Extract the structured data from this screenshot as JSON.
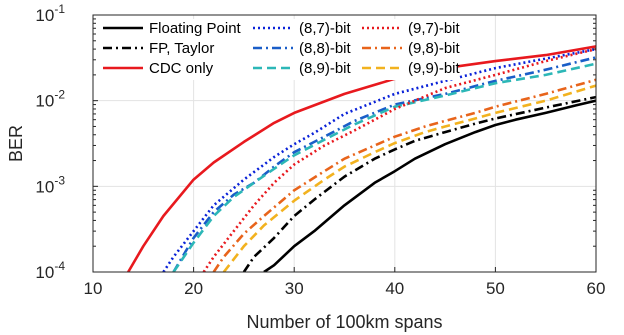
{
  "chart_data": {
    "type": "line",
    "xlabel": "Number of 100km spans",
    "ylabel": "BER",
    "xlim": [
      10,
      60
    ],
    "ylim": [
      0.0001,
      0.1
    ],
    "yscale": "log",
    "grid": true,
    "legend_position": "top-left",
    "x_ticks": [
      10,
      20,
      30,
      40,
      50,
      60
    ],
    "y_ticks": [
      {
        "value": 0.0001,
        "base": "10",
        "exp": "-4"
      },
      {
        "value": 0.001,
        "base": "10",
        "exp": "-3"
      },
      {
        "value": 0.01,
        "base": "10",
        "exp": "-2"
      },
      {
        "value": 0.1,
        "base": "10",
        "exp": "-1"
      }
    ],
    "series": [
      {
        "name": "Floating Point",
        "color": "#000000",
        "dash": "solid",
        "x": [
          27,
          28,
          30,
          32,
          35,
          38,
          40,
          42,
          45,
          48,
          50,
          52,
          55,
          58,
          60
        ],
        "y": [
          0.0001,
          0.00012,
          0.0002,
          0.0003,
          0.0006,
          0.0011,
          0.0015,
          0.0021,
          0.0031,
          0.0043,
          0.0052,
          0.006,
          0.0072,
          0.0088,
          0.01
        ]
      },
      {
        "name": "FP, Taylor",
        "color": "#000000",
        "dash": "dashdot",
        "x": [
          25,
          26,
          28,
          30,
          32,
          35,
          38,
          40,
          42,
          45,
          48,
          50,
          55,
          60
        ],
        "y": [
          0.0001,
          0.00015,
          0.00025,
          0.00045,
          0.0007,
          0.0013,
          0.0021,
          0.0027,
          0.0034,
          0.0043,
          0.0054,
          0.0062,
          0.0083,
          0.011
        ]
      },
      {
        "name": "CDC only",
        "color": "#e8191e",
        "dash": "solid",
        "x": [
          13.5,
          15,
          17,
          20,
          22,
          25,
          28,
          30,
          35,
          40,
          45,
          50,
          55,
          60
        ],
        "y": [
          0.0001,
          0.0002,
          0.00045,
          0.0012,
          0.0019,
          0.0033,
          0.0055,
          0.0072,
          0.012,
          0.018,
          0.024,
          0.029,
          0.034,
          0.043
        ]
      },
      {
        "name": "(8,7)-bit",
        "color": "#0a22d8",
        "dash": "dotted",
        "x": [
          17,
          18,
          20,
          22,
          25,
          28,
          30,
          32,
          35,
          40,
          45,
          50,
          55,
          60
        ],
        "y": [
          0.0001,
          0.00015,
          0.0003,
          0.0006,
          0.0012,
          0.0022,
          0.0031,
          0.0042,
          0.007,
          0.012,
          0.017,
          0.024,
          0.031,
          0.04
        ]
      },
      {
        "name": "(8,8)-bit",
        "color": "#1a5ec8",
        "dash": "dashdot",
        "x": [
          18,
          20,
          22,
          24,
          26,
          28,
          30,
          33,
          36,
          40,
          45,
          50,
          55,
          60
        ],
        "y": [
          0.0001,
          0.00025,
          0.0005,
          0.0008,
          0.0011,
          0.0017,
          0.0025,
          0.0038,
          0.0058,
          0.009,
          0.012,
          0.017,
          0.023,
          0.032
        ]
      },
      {
        "name": "(8,9)-bit",
        "color": "#2cb7b7",
        "dash": "dashed",
        "x": [
          18,
          20,
          22,
          24,
          26,
          28,
          30,
          33,
          36,
          40,
          45,
          50,
          55,
          60
        ],
        "y": [
          0.0001,
          0.00022,
          0.00045,
          0.00075,
          0.0011,
          0.0016,
          0.0023,
          0.0035,
          0.0053,
          0.0085,
          0.0115,
          0.016,
          0.02,
          0.027
        ]
      },
      {
        "name": "(9,7)-bit",
        "color": "#e8191e",
        "dash": "dotted",
        "x": [
          21,
          22,
          24,
          26,
          28,
          30,
          33,
          36,
          40,
          45,
          50,
          55,
          60
        ],
        "y": [
          0.0001,
          0.00015,
          0.0003,
          0.0006,
          0.0011,
          0.0018,
          0.003,
          0.0045,
          0.008,
          0.014,
          0.02,
          0.029,
          0.04
        ]
      },
      {
        "name": "(9,8)-bit",
        "color": "#e8641b",
        "dash": "dashdot",
        "x": [
          22,
          23,
          25,
          27,
          30,
          33,
          35,
          38,
          40,
          43,
          45,
          48,
          50,
          55,
          60
        ],
        "y": [
          0.0001,
          0.00015,
          0.00028,
          0.00045,
          0.0009,
          0.0015,
          0.0021,
          0.003,
          0.0038,
          0.005,
          0.0058,
          0.0072,
          0.0085,
          0.012,
          0.0175
        ]
      },
      {
        "name": "(9,9)-bit",
        "color": "#f2b21f",
        "dash": "dashed",
        "x": [
          23,
          25,
          27,
          30,
          33,
          35,
          38,
          40,
          43,
          45,
          48,
          50,
          55,
          60
        ],
        "y": [
          0.0001,
          0.0002,
          0.00035,
          0.00068,
          0.0012,
          0.0017,
          0.0025,
          0.0032,
          0.0043,
          0.005,
          0.0062,
          0.0072,
          0.01,
          0.015
        ]
      }
    ]
  }
}
